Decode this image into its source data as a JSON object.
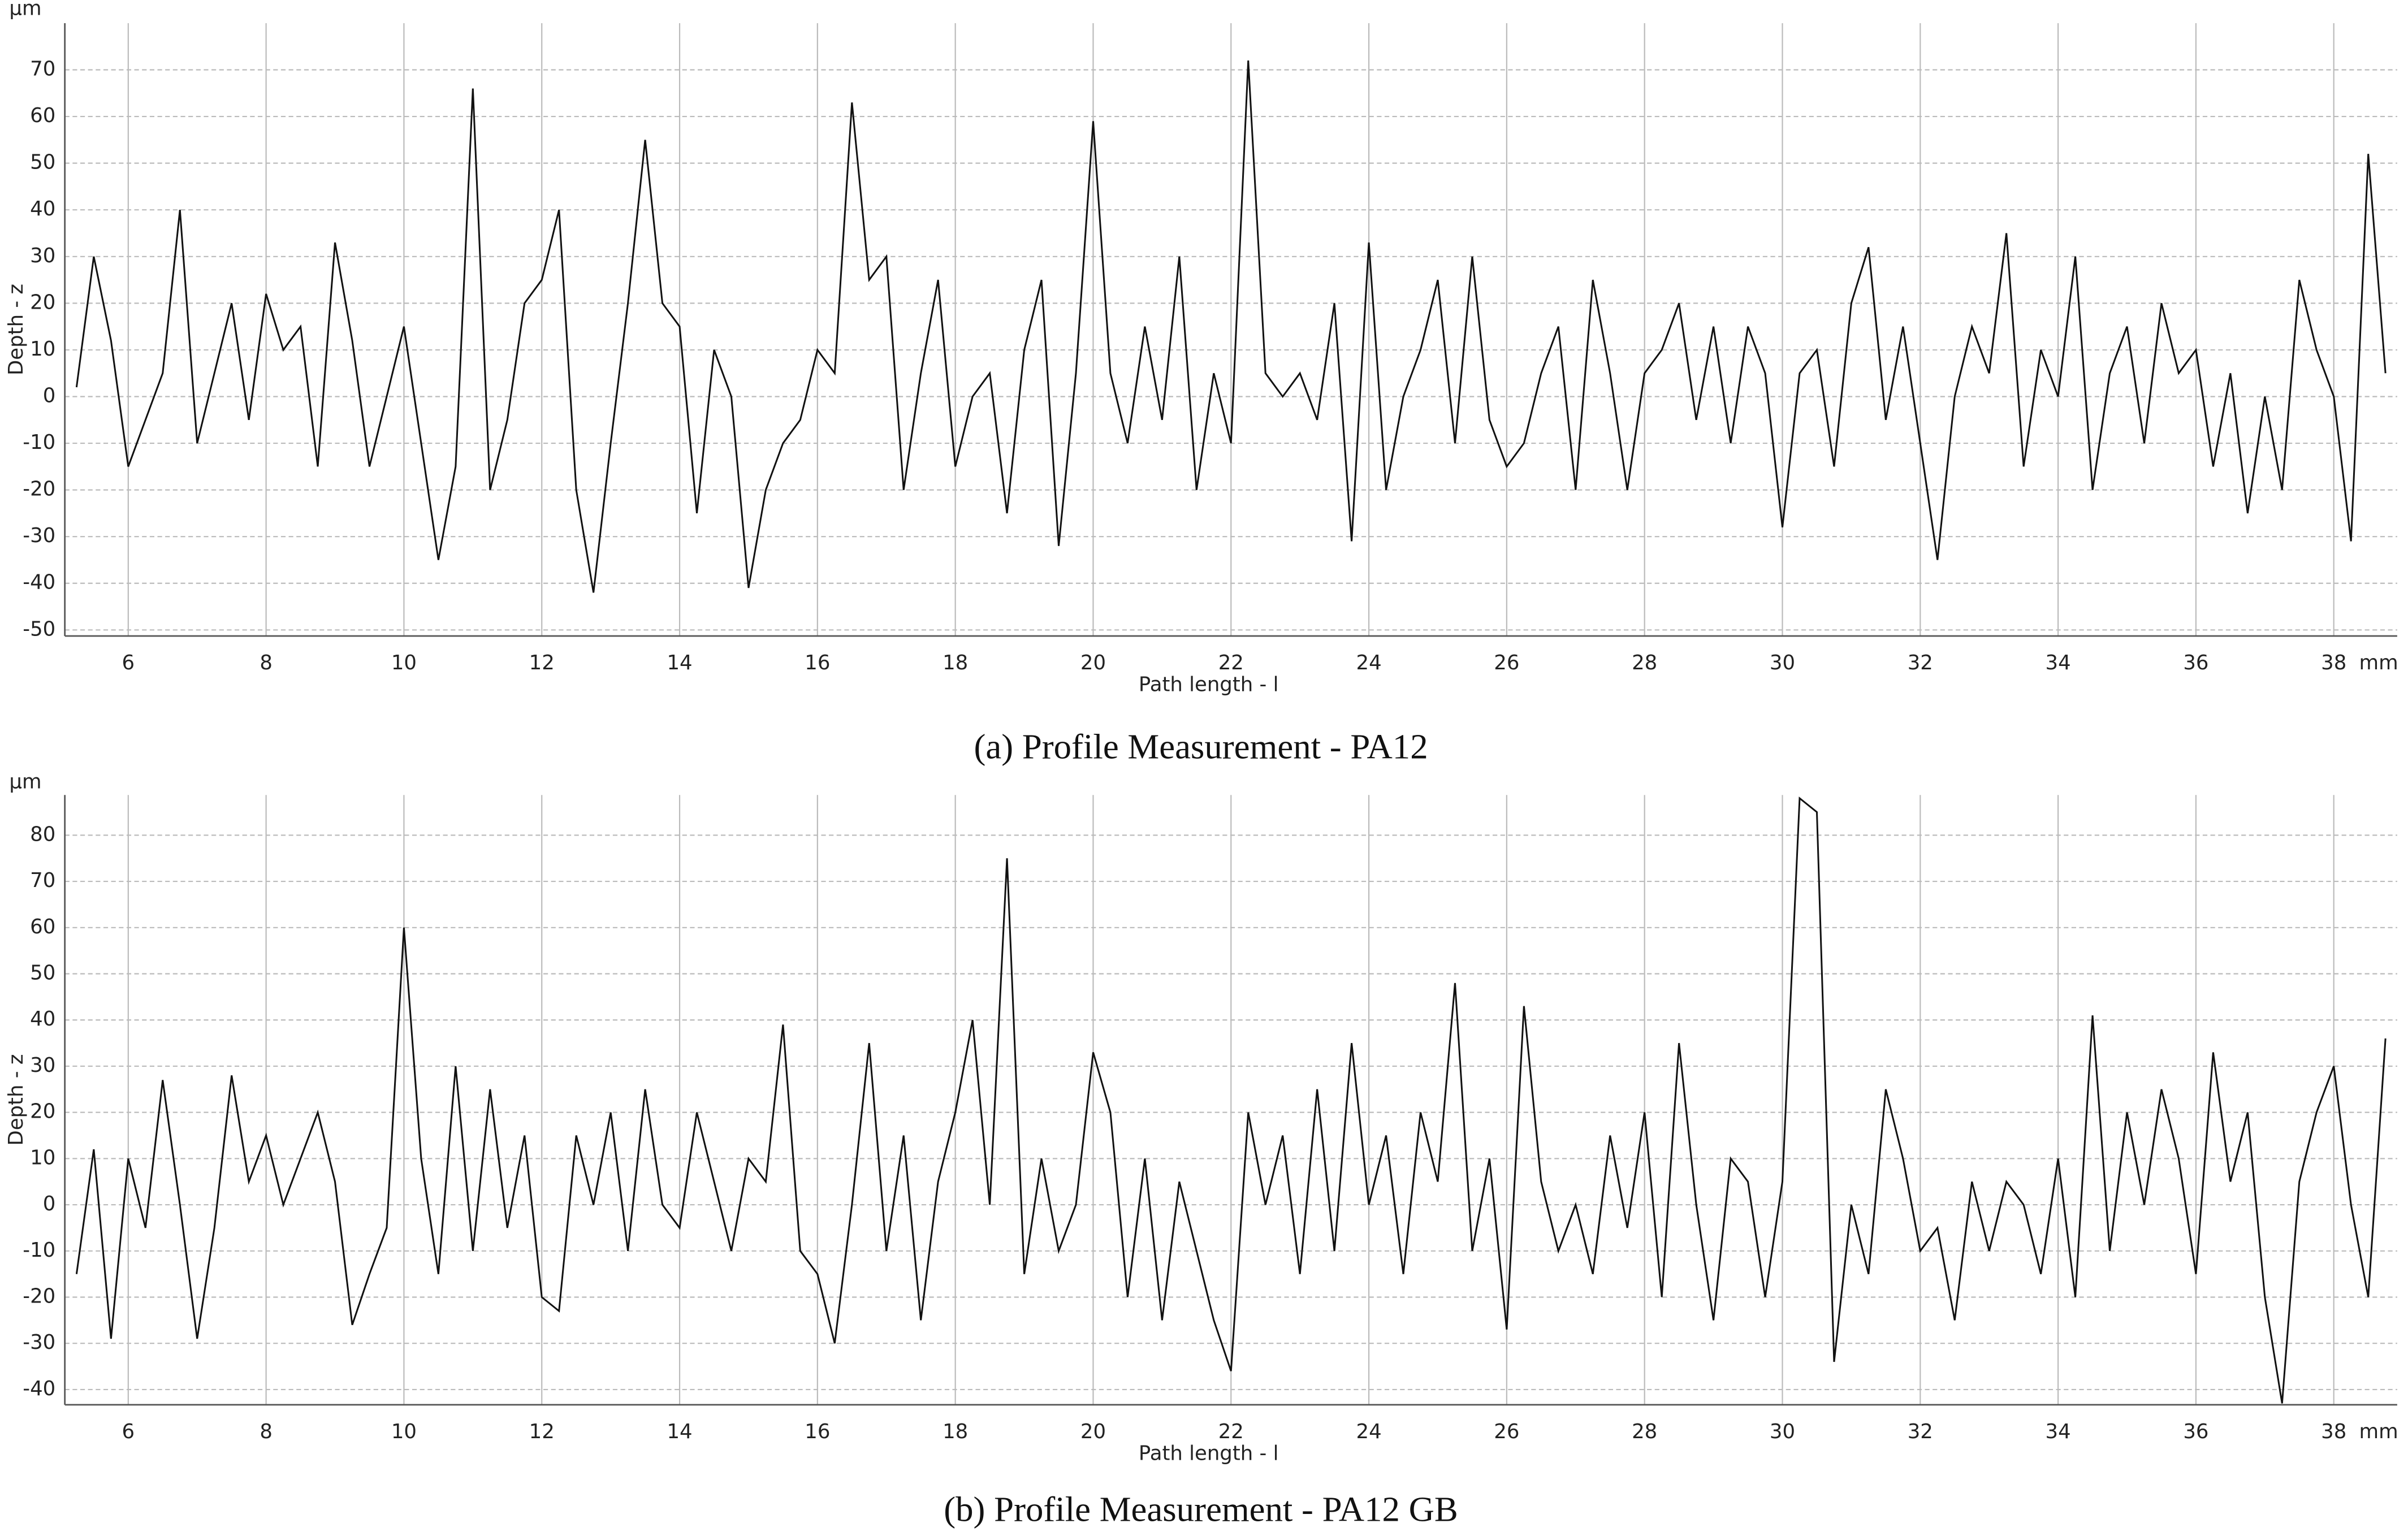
{
  "chart_data": [
    {
      "type": "line",
      "title": "(a) Profile Measurement - PA12",
      "x_label": "Path length - l",
      "y_label": "Depth - z",
      "x_unit": "mm",
      "y_unit": "μm",
      "xlim": [
        5.08,
        38.92
      ],
      "ylim": [
        -51.3,
        80
      ],
      "xticks": [
        6,
        8,
        10,
        12,
        14,
        16,
        18,
        20,
        22,
        24,
        26,
        28,
        30,
        32,
        34,
        36,
        38
      ],
      "yticks": [
        -50,
        -40,
        -30,
        -20,
        -10,
        0,
        10,
        20,
        30,
        40,
        50,
        60,
        70
      ],
      "grid": true,
      "x": [
        5.25,
        5.5,
        5.75,
        6,
        6.25,
        6.5,
        6.75,
        7,
        7.25,
        7.5,
        7.75,
        8,
        8.25,
        8.5,
        8.75,
        9,
        9.25,
        9.5,
        9.75,
        10,
        10.25,
        10.5,
        10.75,
        11,
        11.25,
        11.5,
        11.75,
        12,
        12.25,
        12.5,
        12.75,
        13,
        13.25,
        13.5,
        13.75,
        14,
        14.25,
        14.5,
        14.75,
        15,
        15.25,
        15.5,
        15.75,
        16,
        16.25,
        16.5,
        16.75,
        17,
        17.25,
        17.5,
        17.75,
        18,
        18.25,
        18.5,
        18.75,
        19,
        19.25,
        19.5,
        19.75,
        20,
        20.25,
        20.5,
        20.75,
        21,
        21.25,
        21.5,
        21.75,
        22,
        22.25,
        22.5,
        22.75,
        23,
        23.25,
        23.5,
        23.75,
        24,
        24.25,
        24.5,
        24.75,
        25,
        25.25,
        25.5,
        25.75,
        26,
        26.25,
        26.5,
        26.75,
        27,
        27.25,
        27.5,
        27.75,
        28,
        28.25,
        28.5,
        28.75,
        29,
        29.25,
        29.5,
        29.75,
        30,
        30.25,
        30.5,
        30.75,
        31,
        31.25,
        31.5,
        31.75,
        32,
        32.25,
        32.5,
        32.75,
        33,
        33.25,
        33.5,
        33.75,
        34,
        34.25,
        34.5,
        34.75,
        35,
        35.25,
        35.5,
        35.75,
        36,
        36.25,
        36.5,
        36.75,
        37,
        37.25,
        37.5,
        37.75,
        38,
        38.25,
        38.5,
        38.75
      ],
      "series": [
        {
          "color": "#111111",
          "values": [
            2,
            30,
            12,
            -15,
            -5,
            5,
            40,
            -10,
            5,
            20,
            -5,
            22,
            10,
            15,
            -15,
            33,
            12,
            -15,
            0,
            15,
            -10,
            -35,
            -15,
            66,
            -20,
            -5,
            20,
            25,
            40,
            -20,
            -42,
            -10,
            20,
            55,
            20,
            15,
            -25,
            10,
            0,
            -41,
            -20,
            -10,
            -5,
            10,
            5,
            63,
            25,
            30,
            -20,
            5,
            25,
            -15,
            0,
            5,
            -25,
            10,
            25,
            -32,
            5,
            59,
            5,
            -10,
            15,
            -5,
            30,
            -20,
            5,
            -10,
            72,
            5,
            0,
            5,
            -5,
            20,
            -31,
            33,
            -20,
            0,
            10,
            25,
            -10,
            30,
            -5,
            -15,
            -10,
            5,
            15,
            -20,
            25,
            5,
            -20,
            5,
            10,
            20,
            -5,
            15,
            -10,
            15,
            5,
            -28,
            5,
            10,
            -15,
            20,
            32,
            -5,
            15,
            -10,
            -35,
            0,
            15,
            5,
            35,
            -15,
            10,
            0,
            30,
            -20,
            5,
            15,
            -10,
            20,
            5,
            10,
            -15,
            5,
            -25,
            0,
            -20,
            25,
            10,
            0,
            -31,
            52,
            5
          ]
        }
      ]
    },
    {
      "type": "line",
      "title": "(b) Profile Measurement - PA12 GB",
      "x_label": "Path length - l",
      "y_label": "Depth - z",
      "x_unit": "mm",
      "y_unit": "μm",
      "xlim": [
        5.08,
        38.92
      ],
      "ylim": [
        -43.3,
        88.7
      ],
      "xticks": [
        6,
        8,
        10,
        12,
        14,
        16,
        18,
        20,
        22,
        24,
        26,
        28,
        30,
        32,
        34,
        36,
        38
      ],
      "yticks": [
        -40,
        -30,
        -20,
        -10,
        0,
        10,
        20,
        30,
        40,
        50,
        60,
        70,
        80
      ],
      "grid": true,
      "x": [
        5.25,
        5.5,
        5.75,
        6,
        6.25,
        6.5,
        6.75,
        7,
        7.25,
        7.5,
        7.75,
        8,
        8.25,
        8.5,
        8.75,
        9,
        9.25,
        9.5,
        9.75,
        10,
        10.25,
        10.5,
        10.75,
        11,
        11.25,
        11.5,
        11.75,
        12,
        12.25,
        12.5,
        12.75,
        13,
        13.25,
        13.5,
        13.75,
        14,
        14.25,
        14.5,
        14.75,
        15,
        15.25,
        15.5,
        15.75,
        16,
        16.25,
        16.5,
        16.75,
        17,
        17.25,
        17.5,
        17.75,
        18,
        18.25,
        18.5,
        18.75,
        19,
        19.25,
        19.5,
        19.75,
        20,
        20.25,
        20.5,
        20.75,
        21,
        21.25,
        21.5,
        21.75,
        22,
        22.25,
        22.5,
        22.75,
        23,
        23.25,
        23.5,
        23.75,
        24,
        24.25,
        24.5,
        24.75,
        25,
        25.25,
        25.5,
        25.75,
        26,
        26.25,
        26.5,
        26.75,
        27,
        27.25,
        27.5,
        27.75,
        28,
        28.25,
        28.5,
        28.75,
        29,
        29.25,
        29.5,
        29.75,
        30,
        30.25,
        30.5,
        30.75,
        31,
        31.25,
        31.5,
        31.75,
        32,
        32.25,
        32.5,
        32.75,
        33,
        33.25,
        33.5,
        33.75,
        34,
        34.25,
        34.5,
        34.75,
        35,
        35.25,
        35.5,
        35.75,
        36,
        36.25,
        36.5,
        36.75,
        37,
        37.25,
        37.5,
        37.75,
        38,
        38.25,
        38.5,
        38.75
      ],
      "series": [
        {
          "color": "#111111",
          "values": [
            -15,
            12,
            -29,
            10,
            -5,
            27,
            0,
            -29,
            -5,
            28,
            5,
            15,
            0,
            10,
            20,
            5,
            -26,
            -15,
            -5,
            60,
            10,
            -15,
            30,
            -10,
            25,
            -5,
            15,
            -20,
            -23,
            15,
            0,
            20,
            -10,
            25,
            0,
            -5,
            20,
            5,
            -10,
            10,
            5,
            39,
            -10,
            -15,
            -30,
            0,
            35,
            -10,
            15,
            -25,
            5,
            20,
            40,
            0,
            75,
            -15,
            10,
            -10,
            0,
            33,
            20,
            -20,
            10,
            -25,
            5,
            -10,
            -25,
            -36,
            20,
            0,
            15,
            -15,
            25,
            -10,
            35,
            0,
            15,
            -15,
            20,
            5,
            48,
            -10,
            10,
            -27,
            43,
            5,
            -10,
            0,
            -15,
            15,
            -5,
            20,
            -20,
            35,
            0,
            -25,
            10,
            5,
            -20,
            5,
            88,
            85,
            -34,
            0,
            -15,
            25,
            10,
            -10,
            -5,
            -25,
            5,
            -10,
            5,
            0,
            -15,
            10,
            -20,
            41,
            -10,
            20,
            0,
            25,
            10,
            -15,
            33,
            5,
            20,
            -20,
            -43,
            5,
            20,
            30,
            0,
            -20,
            36
          ]
        }
      ]
    }
  ]
}
